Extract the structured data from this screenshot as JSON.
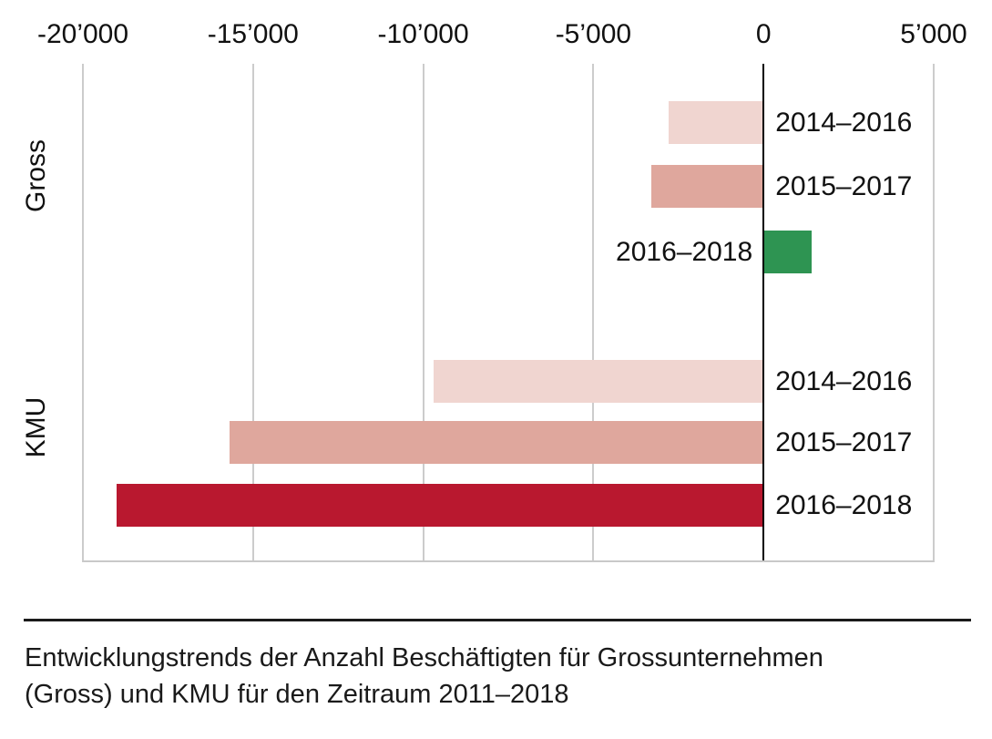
{
  "colors": {
    "bar_2014_2016": "#f0d5d0",
    "bar_2015_2017": "#dfa79d",
    "bar_negative_2016_2018": "#b9182f",
    "bar_positive_2016_2018": "#2e9452",
    "gridline": "#cccccc",
    "zero_line": "#000000",
    "axis_baseline": "#c9c9c9",
    "text": "#111111"
  },
  "chart_data": {
    "type": "bar",
    "orientation": "horizontal",
    "title": "",
    "xlabel": "",
    "ylabel": "",
    "xlim": [
      -20000,
      5000
    ],
    "grid": true,
    "legend": false,
    "x_ticks": [
      -20000,
      -15000,
      -10000,
      -5000,
      0,
      5000
    ],
    "x_tick_labels": [
      "-20’000",
      "-15’000",
      "-10’000",
      "-5’000",
      "0",
      "5’000"
    ],
    "groups": [
      {
        "name": "Gross",
        "bars": [
          {
            "label": "2014–2016",
            "value": -2800,
            "color": "#f0d5d0"
          },
          {
            "label": "2015–2017",
            "value": -3300,
            "color": "#dfa79d"
          },
          {
            "label": "2016–2018",
            "value": 1400,
            "color": "#2e9452"
          }
        ]
      },
      {
        "name": "KMU",
        "bars": [
          {
            "label": "2014–2016",
            "value": -9700,
            "color": "#f0d5d0"
          },
          {
            "label": "2015–2017",
            "value": -15700,
            "color": "#dfa79d"
          },
          {
            "label": "2016–2018",
            "value": -19000,
            "color": "#b9182f"
          }
        ]
      }
    ]
  },
  "caption": {
    "line1": "Entwicklungstrends der Anzahl Beschäftigten für Grossunternehmen",
    "line2": "(Gross) und KMU für den Zeitraum 2011–2018"
  }
}
